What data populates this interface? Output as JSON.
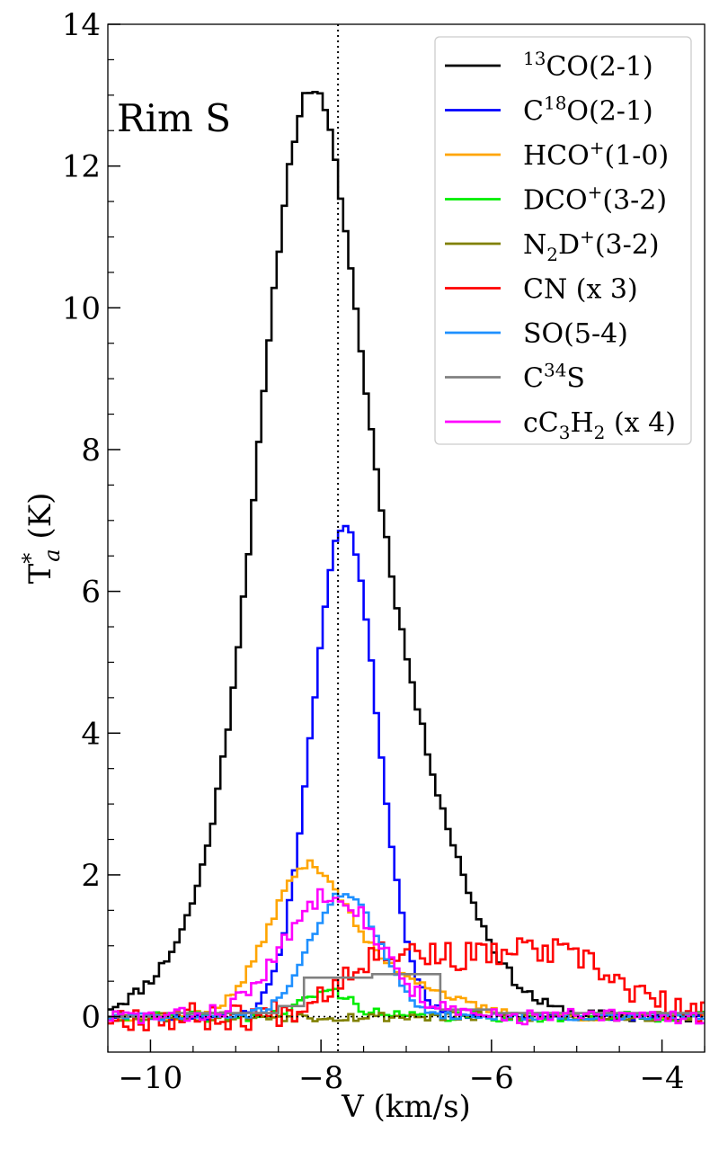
{
  "chart_data": {
    "type": "line",
    "xlabel": "V (km/s)",
    "ylabel": "T*a (K)",
    "ylabel_parts": {
      "base": "T",
      "sup": "*",
      "sub": "a",
      "rest": " (K)"
    },
    "annotation": "Rim S",
    "xlim": [
      -10.5,
      -3.5
    ],
    "ylim": [
      -0.5,
      14
    ],
    "xticks": [
      -10,
      -8,
      -6,
      -4
    ],
    "xtick_labels": [
      "−10",
      "−8",
      "−6",
      "−4"
    ],
    "yticks": [
      0,
      2,
      4,
      6,
      8,
      10,
      12,
      14
    ],
    "ytick_labels": [
      "0",
      "2",
      "4",
      "6",
      "8",
      "10",
      "12",
      "14"
    ],
    "reference_lines": {
      "vertical_x": -7.8,
      "horizontal_y": 0
    },
    "legend_position": "top-right",
    "line_style": "steps",
    "series": [
      {
        "name": "13CO(2-1)",
        "legend": {
          "pre": "",
          "sup": "13",
          "mid": "CO(2-1)",
          "sub": "",
          "post": "",
          "sup2": "",
          "tail": ""
        },
        "color": "#000000",
        "kind": "gauss",
        "components": [
          [
            10.2,
            -8.2,
            0.55
          ],
          [
            4.3,
            -7.3,
            0.75
          ],
          [
            1.4,
            -9.0,
            0.7
          ]
        ],
        "noise": 0.08,
        "seed": 11
      },
      {
        "name": "C18O(2-1)",
        "legend": {
          "pre": "C",
          "sup": "18",
          "mid": "O(2-1)",
          "sub": "",
          "post": "",
          "sup2": "",
          "tail": ""
        },
        "color": "#0000ff",
        "kind": "gauss",
        "components": [
          [
            6.95,
            -7.75,
            0.38
          ]
        ],
        "noise": 0.05,
        "seed": 23
      },
      {
        "name": "HCO+(1-0)",
        "legend": {
          "pre": "HCO",
          "sup": "+",
          "mid": "(1-0)",
          "sub": "",
          "post": "",
          "sup2": "",
          "tail": ""
        },
        "color": "#ffa500",
        "kind": "gauss",
        "components": [
          [
            2.0,
            -8.2,
            0.45
          ],
          [
            0.55,
            -7.2,
            0.6
          ]
        ],
        "noise": 0.06,
        "seed": 37
      },
      {
        "name": "DCO+(3-2)",
        "legend": {
          "pre": "DCO",
          "sup": "+",
          "mid": "(3-2)",
          "sub": "",
          "post": "",
          "sup2": "",
          "tail": ""
        },
        "color": "#00ee00",
        "kind": "gauss",
        "components": [
          [
            0.36,
            -7.95,
            0.28
          ]
        ],
        "noise": 0.07,
        "seed": 41
      },
      {
        "name": "N2D+(3-2)",
        "legend": {
          "pre": "N",
          "sup": "",
          "mid": "",
          "sub": "2",
          "post": "D",
          "sup2": "+",
          "tail": "(3-2)"
        },
        "color": "#808000",
        "kind": "gauss",
        "components": [
          [
            0.0,
            -8.0,
            0.5
          ]
        ],
        "noise": 0.07,
        "seed": 53
      },
      {
        "name": "CN (x 3)",
        "legend": {
          "pre": "CN (x 3)",
          "sup": "",
          "mid": "",
          "sub": "",
          "post": "",
          "sup2": "",
          "tail": ""
        },
        "color": "#ff0000",
        "kind": "gauss",
        "components": [
          [
            0.8,
            -7.3,
            0.55
          ],
          [
            0.7,
            -6.0,
            0.7
          ],
          [
            0.55,
            -5.0,
            0.6
          ]
        ],
        "noise": 0.2,
        "seed": 67
      },
      {
        "name": "SO(5-4)",
        "legend": {
          "pre": "SO(5-4)",
          "sup": "",
          "mid": "",
          "sub": "",
          "post": "",
          "sup2": "",
          "tail": ""
        },
        "color": "#1e90ff",
        "kind": "gauss",
        "components": [
          [
            1.75,
            -7.75,
            0.4
          ]
        ],
        "noise": 0.05,
        "seed": 71
      },
      {
        "name": "C34S",
        "legend": {
          "pre": "C",
          "sup": "34",
          "mid": "S",
          "sub": "",
          "post": "",
          "sup2": "",
          "tail": ""
        },
        "color": "#808080",
        "kind": "steps",
        "x": [
          -10.5,
          -9.8,
          -8.5,
          -8.2,
          -7.8,
          -7.4,
          -7.0,
          -6.6,
          -6.0,
          -3.5
        ],
        "y": [
          0.0,
          0.05,
          0.15,
          0.55,
          0.55,
          0.6,
          0.6,
          0.1,
          0.05,
          0.0
        ]
      },
      {
        "name": "cC3H2 (x 4)",
        "legend": {
          "pre": "cC",
          "sup": "",
          "mid": "",
          "sub": "3",
          "post": "H",
          "sup2": "",
          "tail": "",
          "sub2": "2",
          "end": " (x 4)"
        },
        "color": "#ff00ff",
        "kind": "gauss",
        "components": [
          [
            1.75,
            -7.9,
            0.55
          ]
        ],
        "noise": 0.12,
        "seed": 83
      }
    ]
  }
}
